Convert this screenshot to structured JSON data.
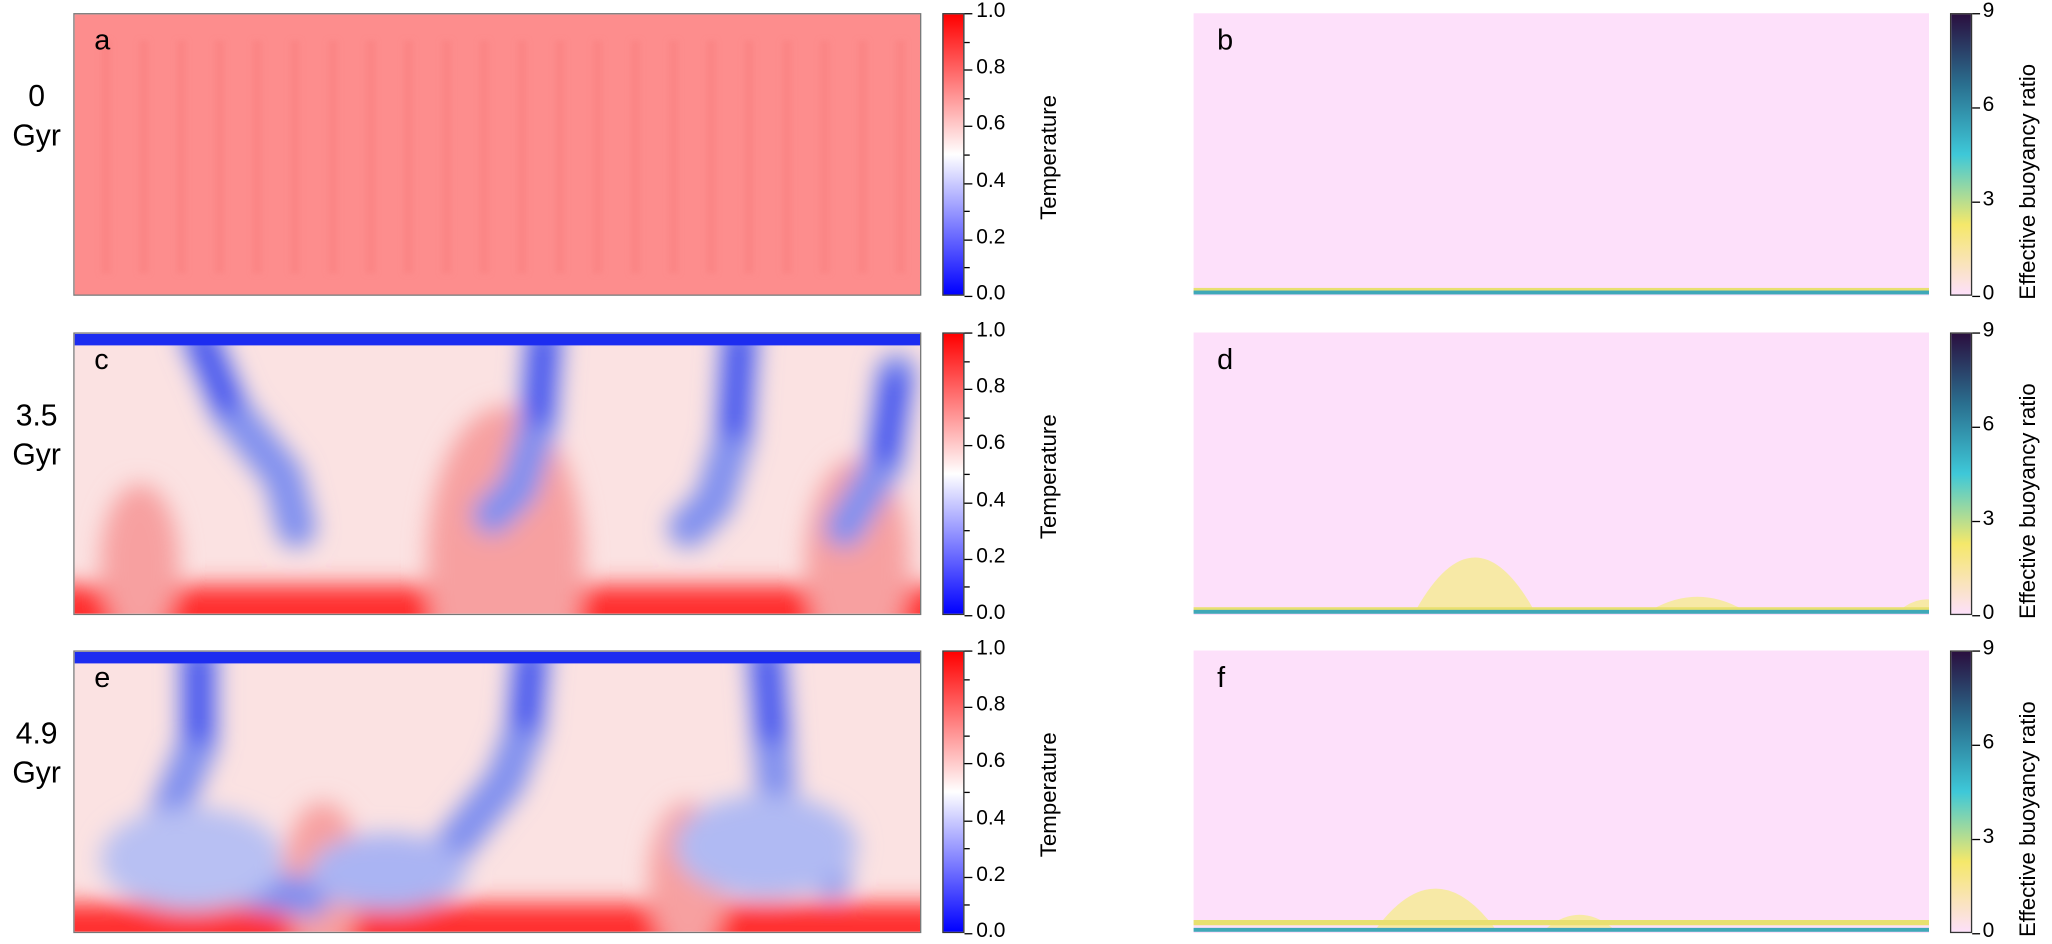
{
  "chart_data": {
    "type": "heatmap",
    "rows": [
      {
        "time_label": "0 Gyr",
        "panels": [
          {
            "letter": "a",
            "field": "Temperature"
          },
          {
            "letter": "b",
            "field": "Effective buoyancy ratio"
          }
        ]
      },
      {
        "time_label": "3.5 Gyr",
        "panels": [
          {
            "letter": "c",
            "field": "Temperature"
          },
          {
            "letter": "d",
            "field": "Effective buoyancy ratio"
          }
        ]
      },
      {
        "time_label": "4.9 Gyr",
        "panels": [
          {
            "letter": "e",
            "field": "Temperature"
          },
          {
            "letter": "f",
            "field": "Effective buoyancy ratio"
          }
        ]
      }
    ],
    "colorbars": {
      "temperature": {
        "label": "Temperature",
        "range": [
          0.0,
          1.0
        ],
        "ticks": [
          "0.0",
          "0.2",
          "0.4",
          "0.6",
          "0.8",
          "1.0"
        ],
        "colormap": [
          "#0000ff",
          "#ffffff",
          "#ff0000"
        ]
      },
      "buoyancy": {
        "label": "Effective buoyancy ratio",
        "range": [
          0,
          9
        ],
        "ticks": [
          "0",
          "3",
          "6",
          "9"
        ],
        "colormap": [
          "#fde0fa",
          "#f5e86a",
          "#3ec8d8",
          "#2a6f8f",
          "#2a0f3f"
        ]
      }
    },
    "panel_letters": [
      "a",
      "b",
      "c",
      "d",
      "e",
      "f"
    ],
    "times": [
      "0",
      "Gyr",
      "3.5",
      "Gyr",
      "4.9",
      "Gyr"
    ]
  }
}
